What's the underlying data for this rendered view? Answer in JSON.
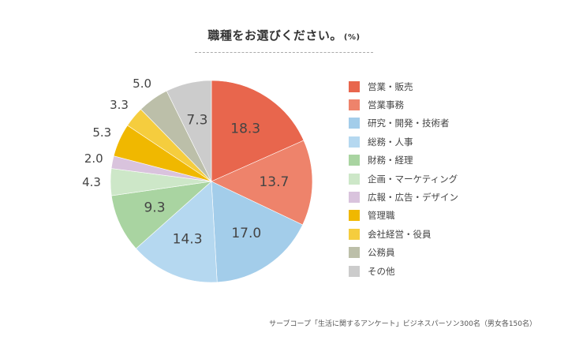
{
  "title": "職種をお選びください。",
  "unit": "(%)",
  "source": "サーブコープ「生活に関するアンケート」ビジネスパーソン300名（男女各150名）",
  "chart_data": {
    "type": "pie",
    "title": "職種をお選びください。",
    "unit": "(%)",
    "start": "12 o'clock, clockwise",
    "categories": [
      "営業・販売",
      "営業事務",
      "研究・開発・技術者",
      "総務・人事",
      "財務・経理",
      "企画・マーケティング",
      "広報・広告・デザイン",
      "管理職",
      "会社経営・役員",
      "公務員",
      "その他"
    ],
    "values": [
      18.3,
      13.7,
      17.0,
      14.3,
      9.3,
      4.3,
      2.0,
      5.3,
      3.3,
      5.0,
      7.3
    ],
    "labels": [
      "18.3",
      "13.7",
      "17.0",
      "14.3",
      "9.3",
      "4.3",
      "2.0",
      "5.3",
      "3.3",
      "5.0",
      "7.3"
    ],
    "colors": [
      "#e8664d",
      "#ee836b",
      "#a3cdea",
      "#b5d8f0",
      "#a9d4a1",
      "#cde7c8",
      "#d9c3dd",
      "#f0b800",
      "#f5cd3e",
      "#bcbfa9",
      "#cccccc"
    ],
    "label_colors": [
      "#444444",
      "#444444",
      "#444444",
      "#444444",
      "#444444",
      "#444444",
      "#444444",
      "#444444",
      "#444444",
      "#444444",
      "#444444"
    ],
    "legend_position": "right"
  }
}
